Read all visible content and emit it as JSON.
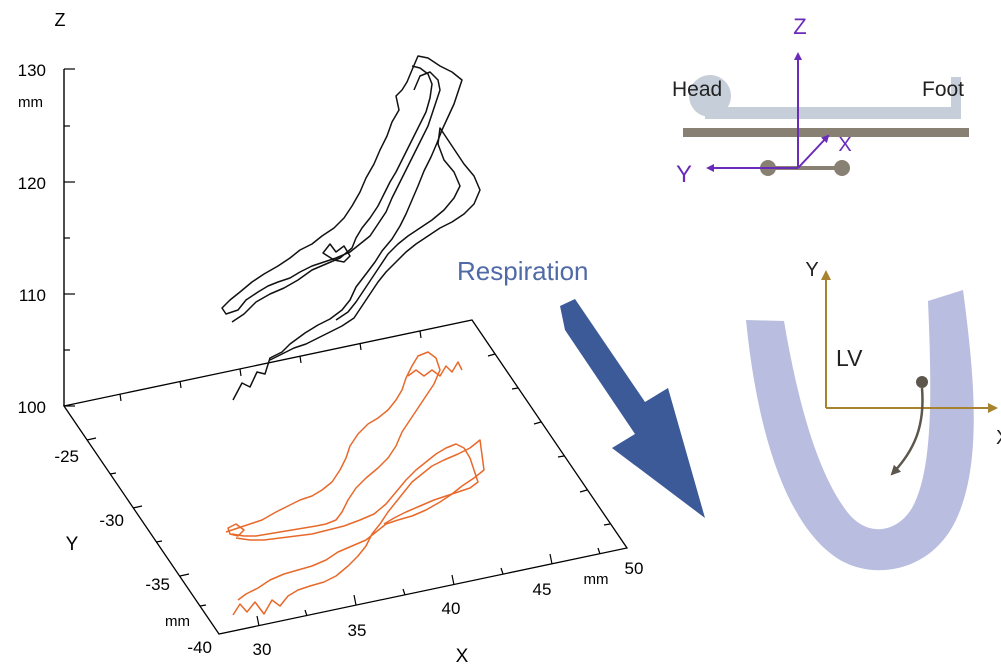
{
  "plot3d": {
    "axis_z_letter": "Z",
    "z_unit": "mm",
    "z_ticks": [
      "130",
      "120",
      "110",
      "100"
    ],
    "y_ticks": [
      "-25",
      "-30",
      "-35",
      "-40"
    ],
    "y_letter": "Y",
    "y_unit": "mm",
    "x_ticks": [
      "30",
      "35",
      "40",
      "45",
      "50"
    ],
    "x_letter": "X",
    "x_unit": "mm",
    "trajectory_color": "#111111",
    "projection_color": "#e8692a"
  },
  "arrow": {
    "label": "Respiration",
    "label_color": "#4f6aa6",
    "arrow_color": "#3c5a98"
  },
  "table_diagram": {
    "head_label": "Head",
    "foot_label": "Foot",
    "axis_z": "Z",
    "axis_y": "Y",
    "axis_x": "X",
    "axis_color": "#6a2bb8",
    "table_color": "#888073",
    "patient_color": "#c6ced9"
  },
  "heart_diagram": {
    "lv_label": "LV",
    "axis_y": "Y",
    "axis_x": "X",
    "axis_color": "#a7822f",
    "myocardium_color": "#b9bddf",
    "marker_color": "#5d564d"
  }
}
